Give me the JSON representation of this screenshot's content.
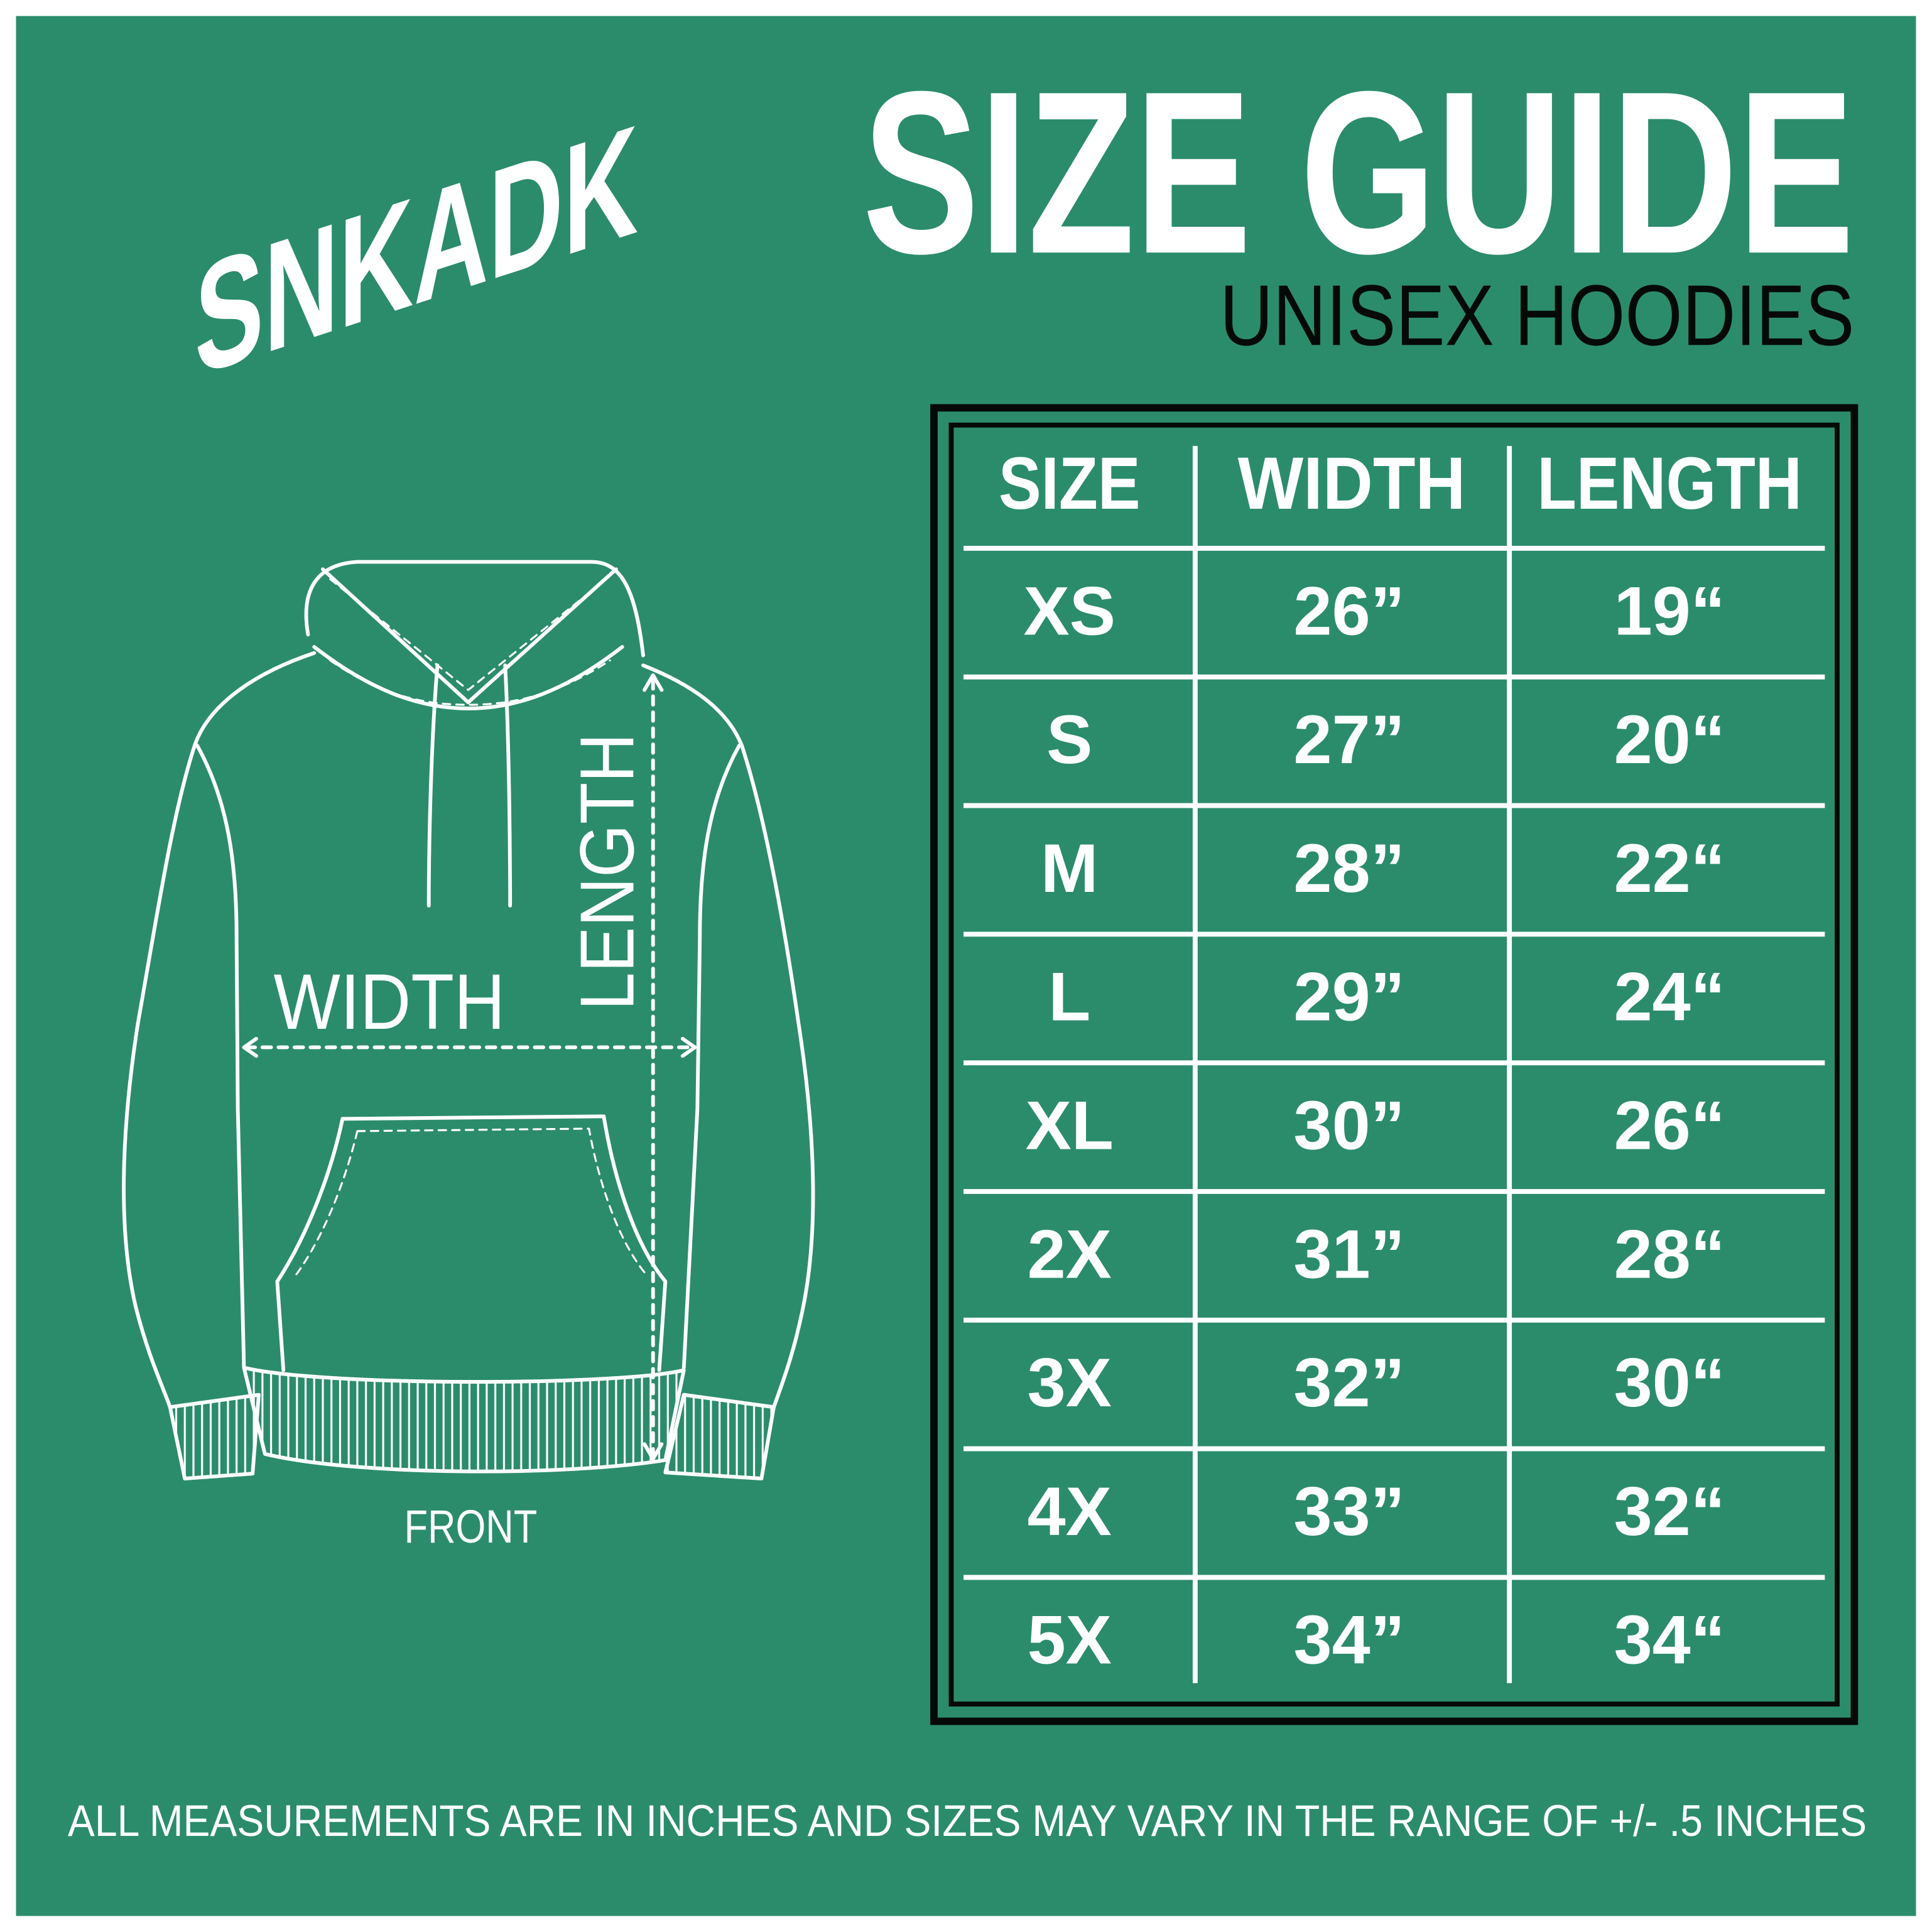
{
  "logo": "SNKADK",
  "header": {
    "title": "SIZE GUIDE",
    "subtitle": "UNISEX HOODIES"
  },
  "illustration": {
    "width_label": "WIDTH",
    "length_label": "LENGTH",
    "view_label": "FRONT"
  },
  "table": {
    "columns": [
      "SIZE",
      "WIDTH",
      "LENGTH"
    ],
    "rows": [
      [
        "XS",
        "26”",
        "19“"
      ],
      [
        "S",
        "27”",
        "20“"
      ],
      [
        "M",
        "28”",
        "22“"
      ],
      [
        "L",
        "29”",
        "24“"
      ],
      [
        "XL",
        "30”",
        "26“"
      ],
      [
        "2X",
        "31”",
        "28“"
      ],
      [
        "3X",
        "32”",
        "30“"
      ],
      [
        "4X",
        "33”",
        "32“"
      ],
      [
        "5X",
        "34”",
        "34“"
      ]
    ]
  },
  "footer": {
    "note": "ALL MEASUREMENTS ARE IN INCHES AND SIZES MAY VARY IN THE RANGE OF +/- .5 INCHES"
  },
  "colors": {
    "background": "#2b8c6b",
    "text": "#ffffff",
    "border": "#050a08"
  }
}
